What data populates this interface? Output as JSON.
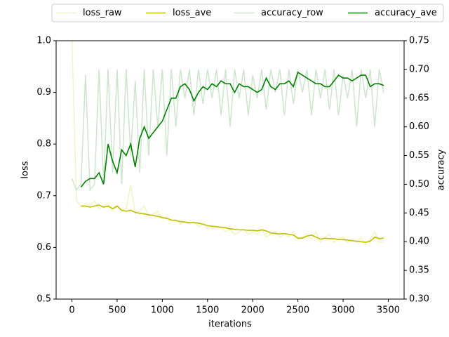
{
  "chart_data": {
    "type": "line",
    "xlabel": "iterations",
    "ylabel": "loss",
    "y2label": "accuracy",
    "legend": "upper center",
    "x": [
      0,
      50,
      100,
      150,
      200,
      250,
      300,
      350,
      400,
      450,
      500,
      550,
      600,
      650,
      700,
      750,
      800,
      850,
      900,
      950,
      1000,
      1050,
      1100,
      1150,
      1200,
      1250,
      1300,
      1350,
      1400,
      1450,
      1500,
      1550,
      1600,
      1650,
      1700,
      1750,
      1800,
      1850,
      1900,
      1950,
      2000,
      2050,
      2100,
      2150,
      2200,
      2250,
      2300,
      2350,
      2400,
      2450,
      2500,
      2550,
      2600,
      2650,
      2700,
      2750,
      2800,
      2850,
      2900,
      2950,
      3000,
      3050,
      3100,
      3150,
      3200,
      3250,
      3300,
      3350,
      3400,
      3450
    ],
    "series": [
      {
        "name": "loss_raw",
        "color": "#f3f3c6",
        "values": [
          1.0,
          0.69,
          0.68,
          0.685,
          0.68,
          0.69,
          0.675,
          0.68,
          0.685,
          0.67,
          0.68,
          0.67,
          0.675,
          0.72,
          0.665,
          0.67,
          0.68,
          0.66,
          0.665,
          0.67,
          0.655,
          0.66,
          0.65,
          0.655,
          0.645,
          0.65,
          0.645,
          0.65,
          0.64,
          0.645,
          0.635,
          0.64,
          0.635,
          0.64,
          0.63,
          0.635,
          0.625,
          0.63,
          0.635,
          0.625,
          0.63,
          0.625,
          0.635,
          0.62,
          0.625,
          0.63,
          0.62,
          0.625,
          0.62,
          0.63,
          0.615,
          0.62,
          0.625,
          0.615,
          0.63,
          0.61,
          0.62,
          0.625,
          0.61,
          0.615,
          0.62,
          0.61,
          0.615,
          0.61,
          0.62,
          0.605,
          0.615,
          0.63,
          0.61,
          0.61
        ]
      },
      {
        "name": "loss_ave",
        "color": "#bfbf00",
        "values": [
          null,
          null,
          0.68,
          0.68,
          0.678,
          0.68,
          0.682,
          0.678,
          0.68,
          0.675,
          0.68,
          0.672,
          0.67,
          0.672,
          0.668,
          0.666,
          0.665,
          0.663,
          0.662,
          0.66,
          0.658,
          0.656,
          0.653,
          0.652,
          0.65,
          0.649,
          0.648,
          0.648,
          0.647,
          0.645,
          0.642,
          0.641,
          0.64,
          0.639,
          0.638,
          0.636,
          0.635,
          0.634,
          0.634,
          0.633,
          0.633,
          0.632,
          0.634,
          0.632,
          0.628,
          0.627,
          0.626,
          0.627,
          0.625,
          0.624,
          0.618,
          0.618,
          0.622,
          0.624,
          0.62,
          0.616,
          0.618,
          0.617,
          0.617,
          0.615,
          0.615,
          0.614,
          0.613,
          0.612,
          0.611,
          0.61,
          0.612,
          0.62,
          0.617,
          0.618
        ]
      },
      {
        "name": "accuracy_row",
        "color": "#cce5cc",
        "axis": "y2",
        "values": [
          0.51,
          0.49,
          0.5,
          0.69,
          0.49,
          0.5,
          0.7,
          0.5,
          0.7,
          0.52,
          0.7,
          0.5,
          0.7,
          0.55,
          0.68,
          0.52,
          0.7,
          0.55,
          0.7,
          0.6,
          0.7,
          0.55,
          0.7,
          0.6,
          0.7,
          0.65,
          0.7,
          0.62,
          0.7,
          0.64,
          0.7,
          0.65,
          0.7,
          0.62,
          0.7,
          0.6,
          0.7,
          0.65,
          0.7,
          0.62,
          0.69,
          0.65,
          0.7,
          0.63,
          0.7,
          0.66,
          0.7,
          0.62,
          0.7,
          0.64,
          0.7,
          0.66,
          0.7,
          0.62,
          0.7,
          0.65,
          0.7,
          0.63,
          0.7,
          0.62,
          0.69,
          0.65,
          0.7,
          0.6,
          0.7,
          0.65,
          0.7,
          0.6,
          0.7,
          0.66
        ]
      },
      {
        "name": "accuracy_ave",
        "color": "#008000",
        "axis": "y2",
        "values": [
          null,
          null,
          0.495,
          0.505,
          0.51,
          0.51,
          0.52,
          0.5,
          0.57,
          0.54,
          0.52,
          0.56,
          0.55,
          0.57,
          0.53,
          0.58,
          0.6,
          0.58,
          0.59,
          0.6,
          0.61,
          0.63,
          0.65,
          0.65,
          0.67,
          0.675,
          0.665,
          0.645,
          0.66,
          0.67,
          0.665,
          0.675,
          0.67,
          0.68,
          0.675,
          0.675,
          0.66,
          0.675,
          0.67,
          0.67,
          0.665,
          0.66,
          0.665,
          0.685,
          0.67,
          0.665,
          0.675,
          0.675,
          0.68,
          0.67,
          0.695,
          0.69,
          0.685,
          0.68,
          0.675,
          0.675,
          0.67,
          0.67,
          0.68,
          0.69,
          0.685,
          0.685,
          0.68,
          0.685,
          0.69,
          0.69,
          0.67,
          0.675,
          0.675,
          0.672
        ]
      }
    ],
    "xlim": [
      -175,
      3675
    ],
    "xticks": [
      0,
      500,
      1000,
      1500,
      2000,
      2500,
      3000,
      3500
    ],
    "ylim": [
      0.5,
      1.0
    ],
    "yticks": [
      0.5,
      0.6,
      0.7,
      0.8,
      0.9,
      {
        "value": 1.0,
        "label": "1.0"
      }
    ],
    "y2lim": [
      0.3,
      0.75
    ],
    "y2ticks": [
      {
        "value": 0.3,
        "label": "0.30"
      },
      {
        "value": 0.35,
        "label": "0.35"
      },
      {
        "value": 0.4,
        "label": "0.40"
      },
      {
        "value": 0.45,
        "label": "0.45"
      },
      {
        "value": 0.5,
        "label": "0.50"
      },
      {
        "value": 0.55,
        "label": "0.55"
      },
      {
        "value": 0.6,
        "label": "0.60"
      },
      {
        "value": 0.65,
        "label": "0.65"
      },
      {
        "value": 0.7,
        "label": "0.70"
      },
      {
        "value": 0.75,
        "label": "0.75"
      }
    ]
  }
}
